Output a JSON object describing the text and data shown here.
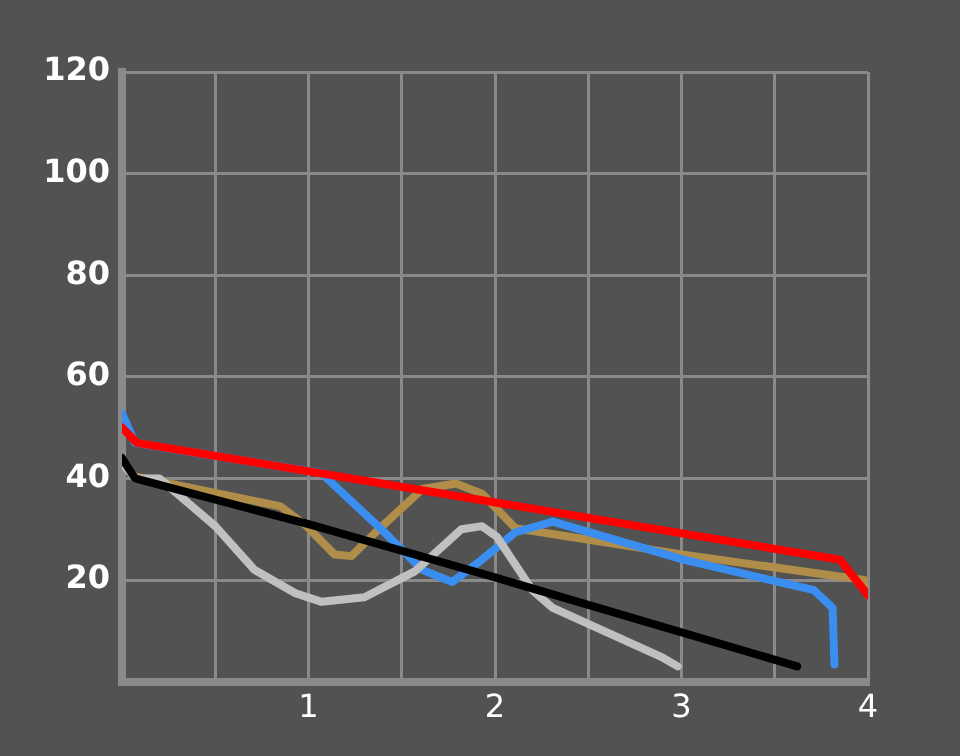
{
  "chart_data": {
    "type": "line",
    "xlim": [
      0,
      4
    ],
    "ylim": [
      0,
      120
    ],
    "xticks": [
      {
        "value": 0,
        "label": null
      },
      {
        "value": 0.5,
        "label": null
      },
      1,
      {
        "value": 1.5,
        "label": null
      },
      2,
      {
        "value": 2.5,
        "label": null
      },
      3,
      {
        "value": 3.5,
        "label": null
      },
      4
    ],
    "yticks": [
      {
        "value": 0,
        "label": null
      },
      20,
      40,
      60,
      80,
      100,
      120
    ],
    "grid": true,
    "legend": false,
    "marker": "none",
    "line_style": "solid",
    "series": [
      {
        "color": "#000000",
        "x": [
          0,
          0.07,
          1,
          2,
          3.62
        ],
        "values": [
          44,
          40,
          31,
          20.5,
          3
        ]
      },
      {
        "color": "#c0c0c0",
        "x": [
          0,
          0.07,
          0.2,
          0.5,
          0.71,
          0.93,
          1.07,
          1.3,
          1.57,
          1.82,
          1.93,
          2.01,
          2.2,
          2.31,
          2.9,
          2.98
        ],
        "values": [
          43,
          40,
          40,
          30.6,
          22,
          17.4,
          15.7,
          16.6,
          21.7,
          30,
          30.6,
          28.5,
          18,
          14.5,
          4.7,
          3
        ]
      },
      {
        "color": "#ff0000",
        "x": [
          0,
          0.08,
          3.85,
          4
        ],
        "values": [
          50,
          47,
          24,
          17
        ]
      },
      {
        "color": "#3a8ef0",
        "x": [
          0,
          0.07,
          1.07,
          1.39,
          1.61,
          1.77,
          1.93,
          2.11,
          2.31,
          3.01,
          3.71,
          3.81,
          3.82
        ],
        "values": [
          52.8,
          47,
          41,
          30,
          22,
          19.6,
          24,
          29.4,
          31.5,
          24,
          18,
          14.5,
          3.4
        ]
      },
      {
        "color": "#b08d48",
        "x": [
          0.07,
          0.85,
          0.99,
          1.14,
          1.23,
          1.36,
          1.61,
          1.79,
          1.93,
          2.11,
          3.01,
          3.98,
          4
        ],
        "values": [
          40.4,
          34.5,
          30.6,
          25,
          24.7,
          29.4,
          37.9,
          39,
          37,
          30.2,
          25,
          20,
          17
        ]
      }
    ]
  }
}
